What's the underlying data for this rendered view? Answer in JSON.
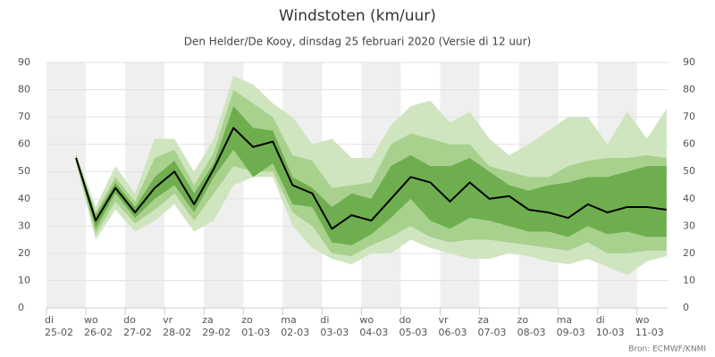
{
  "chart_data": {
    "type": "line",
    "title": "Windstoten (km/uur)",
    "subtitle": "Den Helder/De Kooy, dinsdag 25 februari 2020 (Versie di 12 uur)",
    "source": "Bron: ECMWF/KNMI",
    "xlim": [
      0,
      15.8
    ],
    "xticks": [
      {
        "value": 0,
        "label": "di\n25-02"
      },
      {
        "value": 1,
        "label": "wo\n26-02"
      },
      {
        "value": 2,
        "label": "do\n27-02"
      },
      {
        "value": 3,
        "label": "vr\n28-02"
      },
      {
        "value": 4,
        "label": "za\n29-02"
      },
      {
        "value": 5,
        "label": "zo\n01-03"
      },
      {
        "value": 6,
        "label": "ma\n02-03"
      },
      {
        "value": 7,
        "label": "di\n03-03"
      },
      {
        "value": 8,
        "label": "wo\n04-03"
      },
      {
        "value": 9,
        "label": "do\n05-03"
      },
      {
        "value": 10,
        "label": "vr\n06-03"
      },
      {
        "value": 11,
        "label": "za\n07-03"
      },
      {
        "value": 12,
        "label": "zo\n08-03"
      },
      {
        "value": 13,
        "label": "ma\n09-03"
      },
      {
        "value": 14,
        "label": "di\n10-03"
      },
      {
        "value": 15,
        "label": "wo\n11-03"
      }
    ],
    "ylim": [
      0,
      90
    ],
    "yticks": [
      0,
      10,
      20,
      30,
      40,
      50,
      60,
      70,
      80,
      90
    ],
    "y2lim": [
      0,
      90
    ],
    "y2ticks": [
      0,
      10,
      20,
      30,
      40,
      50,
      60,
      70,
      80,
      90
    ],
    "x": [
      0.75,
      1.25,
      1.75,
      2.25,
      2.75,
      3.25,
      3.75,
      4.25,
      4.75,
      5.25,
      5.75,
      6.25,
      6.75,
      7.25,
      7.75,
      8.25,
      8.75,
      9.25,
      9.75,
      10.25,
      10.75,
      11.25,
      11.75,
      12.25,
      12.75,
      13.25,
      13.75,
      14.25,
      14.75,
      15.25,
      15.75
    ],
    "bands": [
      {
        "color": "#cfe5bf",
        "upper": [
          57,
          37,
          52,
          42,
          62,
          62,
          50,
          62,
          85,
          82,
          75,
          70,
          60,
          62,
          55,
          55,
          67,
          74,
          76,
          68,
          72,
          62,
          56,
          60,
          65,
          70,
          70,
          60,
          72,
          62,
          73
        ],
        "lower": [
          53,
          25,
          36,
          28,
          32,
          38,
          28,
          32,
          45,
          48,
          48,
          30,
          22,
          18,
          16,
          20,
          20,
          25,
          22,
          20,
          18,
          18,
          20,
          19,
          17,
          16,
          18,
          15,
          12,
          17,
          19
        ]
      },
      {
        "color": "#a9d18e",
        "upper": [
          56,
          35,
          48,
          39,
          55,
          58,
          45,
          57,
          80,
          75,
          70,
          56,
          54,
          44,
          45,
          46,
          60,
          64,
          62,
          60,
          60,
          52,
          50,
          48,
          48,
          52,
          54,
          55,
          55,
          56,
          55
        ],
        "lower": [
          54,
          27,
          39,
          31,
          36,
          42,
          32,
          42,
          52,
          50,
          50,
          35,
          30,
          20,
          19,
          23,
          26,
          30,
          26,
          24,
          25,
          25,
          24,
          23,
          22,
          21,
          24,
          20,
          20,
          21,
          21
        ]
      },
      {
        "color": "#6fae4f",
        "upper": [
          56,
          34,
          46,
          37,
          48,
          54,
          42,
          53,
          74,
          66,
          65,
          48,
          44,
          37,
          42,
          40,
          52,
          56,
          52,
          52,
          55,
          50,
          45,
          43,
          45,
          46,
          48,
          48,
          50,
          52,
          52
        ],
        "lower": [
          54,
          29,
          42,
          33,
          40,
          45,
          35,
          48,
          58,
          48,
          53,
          38,
          37,
          24,
          23,
          27,
          33,
          40,
          32,
          29,
          33,
          32,
          30,
          28,
          28,
          26,
          30,
          27,
          28,
          26,
          26
        ]
      }
    ],
    "median": {
      "color": "#000000",
      "values": [
        55,
        32,
        44,
        35,
        44,
        50,
        38,
        51,
        66,
        59,
        61,
        45,
        42,
        29,
        34,
        32,
        40,
        48,
        46,
        39,
        46,
        40,
        41,
        36,
        35,
        33,
        38,
        35,
        37,
        37,
        36
      ]
    },
    "day_shading": "#efefef"
  }
}
